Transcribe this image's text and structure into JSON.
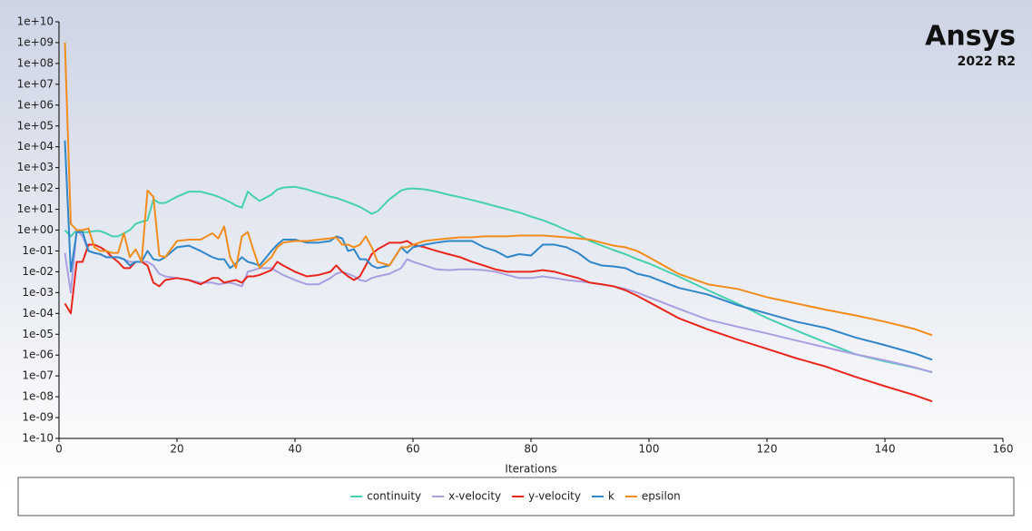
{
  "chart_data": {
    "type": "line",
    "yscale": "log",
    "grid": false,
    "logo": "Ansys",
    "version": "2022 R2",
    "xlabel": "Iterations",
    "xlim": [
      0,
      160
    ],
    "xticks": [
      0,
      20,
      40,
      60,
      80,
      100,
      120,
      140,
      160
    ],
    "ylim": [
      1e-10,
      10000000000.0
    ],
    "yticks": [
      {
        "value": 10000000000.0,
        "label": "1e+10"
      },
      {
        "value": 1000000000.0,
        "label": "1e+09"
      },
      {
        "value": 100000000.0,
        "label": "1e+08"
      },
      {
        "value": 10000000.0,
        "label": "1e+07"
      },
      {
        "value": 1000000.0,
        "label": "1e+06"
      },
      {
        "value": 100000.0,
        "label": "1e+05"
      },
      {
        "value": 10000.0,
        "label": "1e+04"
      },
      {
        "value": 1000.0,
        "label": "1e+03"
      },
      {
        "value": 100,
        "label": "1e+02"
      },
      {
        "value": 10,
        "label": "1e+01"
      },
      {
        "value": 1,
        "label": "1e+00"
      },
      {
        "value": 0.1,
        "label": "1e-01"
      },
      {
        "value": 0.01,
        "label": "1e-02"
      },
      {
        "value": 0.001,
        "label": "1e-03"
      },
      {
        "value": 0.0001,
        "label": "1e-04"
      },
      {
        "value": 1e-05,
        "label": "1e-05"
      },
      {
        "value": 1e-06,
        "label": "1e-06"
      },
      {
        "value": 1e-07,
        "label": "1e-07"
      },
      {
        "value": 1e-08,
        "label": "1e-08"
      },
      {
        "value": 1e-09,
        "label": "1e-09"
      },
      {
        "value": 1e-10,
        "label": "1e-10"
      }
    ],
    "x": [
      1,
      2,
      3,
      4,
      5,
      6,
      7,
      8,
      9,
      10,
      11,
      12,
      13,
      14,
      15,
      16,
      17,
      18,
      20,
      22,
      24,
      26,
      27,
      28,
      29,
      30,
      31,
      32,
      33,
      34,
      36,
      37,
      38,
      40,
      42,
      44,
      46,
      47,
      48,
      49,
      50,
      51,
      52,
      53,
      54,
      56,
      58,
      59,
      60,
      62,
      64,
      66,
      68,
      70,
      72,
      74,
      76,
      78,
      80,
      82,
      84,
      86,
      88,
      90,
      92,
      94,
      96,
      98,
      100,
      105,
      110,
      115,
      120,
      125,
      130,
      135,
      140,
      145,
      148
    ],
    "series": [
      {
        "name": "continuity",
        "color": "#45d0b0",
        "values": [
          1,
          0.5,
          1,
          0.8,
          0.8,
          0.9,
          0.9,
          0.7,
          0.5,
          0.5,
          0.7,
          1,
          2,
          2.5,
          3,
          30,
          20,
          20,
          40,
          70,
          70,
          50,
          40,
          30,
          22,
          15,
          12,
          70,
          40,
          25,
          50,
          90,
          110,
          120,
          90,
          60,
          40,
          35,
          28,
          22,
          17,
          13,
          9,
          6,
          8,
          30,
          80,
          95,
          100,
          90,
          70,
          50,
          38,
          28,
          20,
          14,
          10,
          7,
          4.5,
          3,
          1.8,
          1,
          0.6,
          0.3,
          0.18,
          0.11,
          0.07,
          0.04,
          0.025,
          0.006,
          0.0013,
          0.0003,
          6e-05,
          1.5e-05,
          4e-06,
          1.1e-06,
          5e-07,
          2.5e-07,
          1.5e-07
        ]
      },
      {
        "name": "x-velocity",
        "color": "#a99fdf",
        "values": [
          0.08,
          0.001,
          1,
          0.5,
          0.1,
          0.08,
          0.07,
          0.05,
          0.05,
          0.05,
          0.04,
          0.03,
          0.03,
          0.03,
          0.03,
          0.02,
          0.008,
          0.006,
          0.005,
          0.004,
          0.003,
          0.003,
          0.0025,
          0.0028,
          0.003,
          0.0025,
          0.002,
          0.01,
          0.012,
          0.015,
          0.015,
          0.01,
          0.007,
          0.004,
          0.0025,
          0.0025,
          0.005,
          0.008,
          0.01,
          0.008,
          0.006,
          0.004,
          0.0035,
          0.005,
          0.006,
          0.008,
          0.015,
          0.04,
          0.03,
          0.02,
          0.013,
          0.012,
          0.013,
          0.013,
          0.012,
          0.01,
          0.007,
          0.005,
          0.005,
          0.006,
          0.005,
          0.004,
          0.0035,
          0.003,
          0.0025,
          0.002,
          0.0015,
          0.001,
          0.0006,
          0.00017,
          5e-05,
          2.3e-05,
          1.1e-05,
          5e-06,
          2.3e-06,
          1.1e-06,
          5.6e-07,
          2.6e-07,
          1.5e-07
        ]
      },
      {
        "name": "y-velocity",
        "color": "#e8261c",
        "values": [
          0.0003,
          0.0001,
          0.03,
          0.03,
          0.2,
          0.2,
          0.15,
          0.1,
          0.05,
          0.03,
          0.015,
          0.015,
          0.03,
          0.03,
          0.02,
          0.003,
          0.002,
          0.004,
          0.005,
          0.004,
          0.0025,
          0.005,
          0.005,
          0.003,
          0.0035,
          0.004,
          0.003,
          0.006,
          0.006,
          0.007,
          0.012,
          0.03,
          0.02,
          0.01,
          0.006,
          0.007,
          0.01,
          0.02,
          0.01,
          0.006,
          0.004,
          0.006,
          0.02,
          0.07,
          0.12,
          0.25,
          0.25,
          0.3,
          0.2,
          0.15,
          0.1,
          0.07,
          0.05,
          0.03,
          0.02,
          0.013,
          0.01,
          0.01,
          0.01,
          0.012,
          0.01,
          0.007,
          0.005,
          0.003,
          0.0025,
          0.002,
          0.0013,
          0.0007,
          0.00035,
          6e-05,
          1.7e-05,
          5.6e-06,
          2e-06,
          7e-07,
          2.8e-07,
          9e-08,
          3.2e-08,
          1.2e-08,
          6e-09
        ]
      },
      {
        "name": "k",
        "color": "#2f86c8",
        "values": [
          20000,
          0.01,
          0.8,
          0.8,
          0.1,
          0.08,
          0.07,
          0.05,
          0.05,
          0.05,
          0.04,
          0.02,
          0.03,
          0.03,
          0.1,
          0.04,
          0.035,
          0.05,
          0.15,
          0.18,
          0.1,
          0.05,
          0.04,
          0.04,
          0.015,
          0.025,
          0.05,
          0.03,
          0.025,
          0.02,
          0.1,
          0.2,
          0.35,
          0.35,
          0.25,
          0.25,
          0.3,
          0.5,
          0.4,
          0.1,
          0.12,
          0.04,
          0.04,
          0.02,
          0.015,
          0.02,
          0.15,
          0.08,
          0.15,
          0.2,
          0.25,
          0.3,
          0.3,
          0.3,
          0.15,
          0.1,
          0.05,
          0.07,
          0.06,
          0.2,
          0.2,
          0.15,
          0.08,
          0.03,
          0.02,
          0.018,
          0.015,
          0.008,
          0.006,
          0.0017,
          0.0008,
          0.00025,
          0.0001,
          4e-05,
          2e-05,
          7e-06,
          3e-06,
          1.2e-06,
          6e-07
        ]
      },
      {
        "name": "epsilon",
        "color": "#f28c1c",
        "values": [
          1000000000.0,
          2,
          1,
          1,
          1.2,
          0.15,
          0.1,
          0.1,
          0.08,
          0.08,
          0.7,
          0.05,
          0.12,
          0.03,
          80,
          40,
          0.06,
          0.05,
          0.3,
          0.35,
          0.35,
          0.7,
          0.4,
          1.5,
          0.05,
          0.015,
          0.5,
          0.8,
          0.1,
          0.015,
          0.05,
          0.15,
          0.25,
          0.3,
          0.3,
          0.35,
          0.4,
          0.45,
          0.2,
          0.2,
          0.15,
          0.2,
          0.5,
          0.15,
          0.03,
          0.02,
          0.15,
          0.15,
          0.2,
          0.3,
          0.35,
          0.4,
          0.45,
          0.45,
          0.5,
          0.5,
          0.5,
          0.55,
          0.55,
          0.55,
          0.5,
          0.45,
          0.4,
          0.35,
          0.25,
          0.18,
          0.15,
          0.1,
          0.05,
          0.008,
          0.0025,
          0.0015,
          0.0006,
          0.0003,
          0.00015,
          8e-05,
          4e-05,
          1.8e-05,
          9e-06
        ]
      }
    ]
  }
}
